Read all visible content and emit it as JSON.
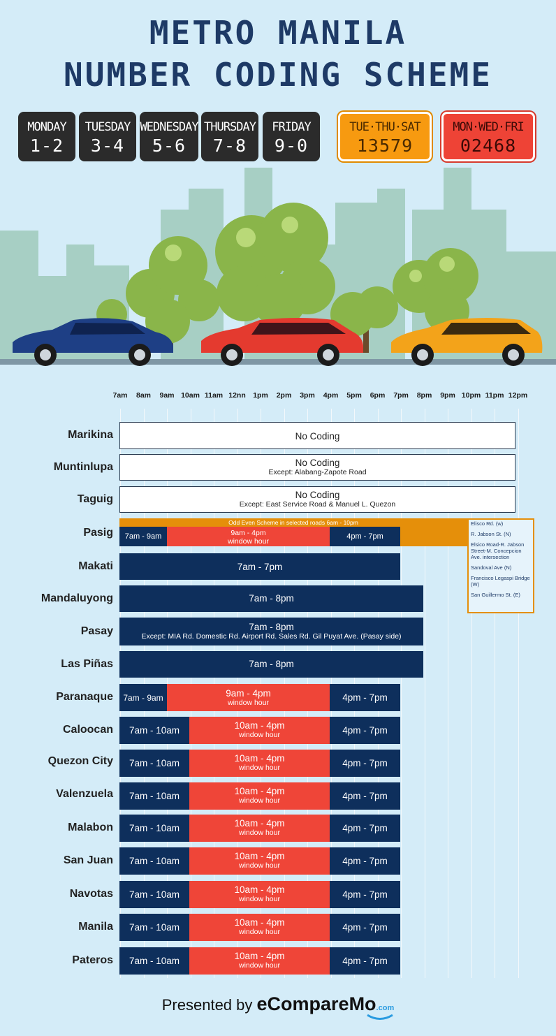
{
  "title": {
    "line1": "METRO MANILA",
    "line2": "NUMBER CODING SCHEME"
  },
  "plates": [
    {
      "day": "MONDAY",
      "num": "1-2"
    },
    {
      "day": "TUESDAY",
      "num": "3-4"
    },
    {
      "day": "WEDNESDAY",
      "num": "5-6"
    },
    {
      "day": "THURSDAY",
      "num": "7-8"
    },
    {
      "day": "FRIDAY",
      "num": "9-0"
    },
    {
      "day": "TUE·THU·SAT",
      "num": "13579"
    },
    {
      "day": "MON·WED·FRI",
      "num": "02468"
    }
  ],
  "times": [
    "7am",
    "8am",
    "9am",
    "10am",
    "11am",
    "12nn",
    "1pm",
    "2pm",
    "3pm",
    "4pm",
    "5pm",
    "6pm",
    "7pm",
    "8pm",
    "9pm",
    "10pm",
    "11pm",
    "12pm"
  ],
  "cities": [
    "Marikina",
    "Muntinlupa",
    "Taguig",
    "Pasig",
    "Makati",
    "Mandaluyong",
    "Pasay",
    "Las Piñas",
    "Paranaque",
    "Caloocan",
    "Quezon City",
    "Valenzuela",
    "Malabon",
    "San Juan",
    "Navotas",
    "Manila",
    "Pateros"
  ],
  "no_coding": {
    "label": "No Coding",
    "muntinlupa_except": "Except: Alabang-Zapote Road",
    "taguig_except": "Except: East Service Road & Manuel L. Quezon"
  },
  "pasig": {
    "odd_even": "Odd Even Scheme in selected roads 6am - 10pm",
    "morning": "7am - 9am",
    "window": "9am - 4pm",
    "window_sub": "window hour",
    "evening": "4pm - 7pm",
    "roads": [
      "Elisco Rd. (w)",
      "R. Jabson St. (N)",
      "Elsico Road-R. Jabson Street-M. Concepcion Ave. intersection",
      "Sandoval Ave (N)",
      "Francisco Legaspi Bridge (W)",
      "San Guillermo St. (E)"
    ]
  },
  "makati": "7am - 7pm",
  "mandaluyong": "7am - 8pm",
  "pasay": {
    "main": "7am - 8pm",
    "except": "Except: MIA Rd. Domestic Rd. Airport Rd. Sales Rd. Gil Puyat Ave. (Pasay side)"
  },
  "las_pinas": "7am - 8pm",
  "paranaque": {
    "morning": "7am - 9am",
    "window": "9am - 4pm",
    "window_sub": "window hour",
    "evening": "4pm - 7pm"
  },
  "standard": {
    "morning": "7am - 10am",
    "window": "10am - 4pm",
    "window_sub": "window hour",
    "evening": "4pm - 7pm"
  },
  "footer": {
    "presented": "Presented by",
    "brand": "eCompareMo",
    "tld": ".com"
  },
  "colors": {
    "navy": "#0e2f5c",
    "red": "#ef4538",
    "orange": "#e58f0a",
    "title": "#1e3a66"
  }
}
